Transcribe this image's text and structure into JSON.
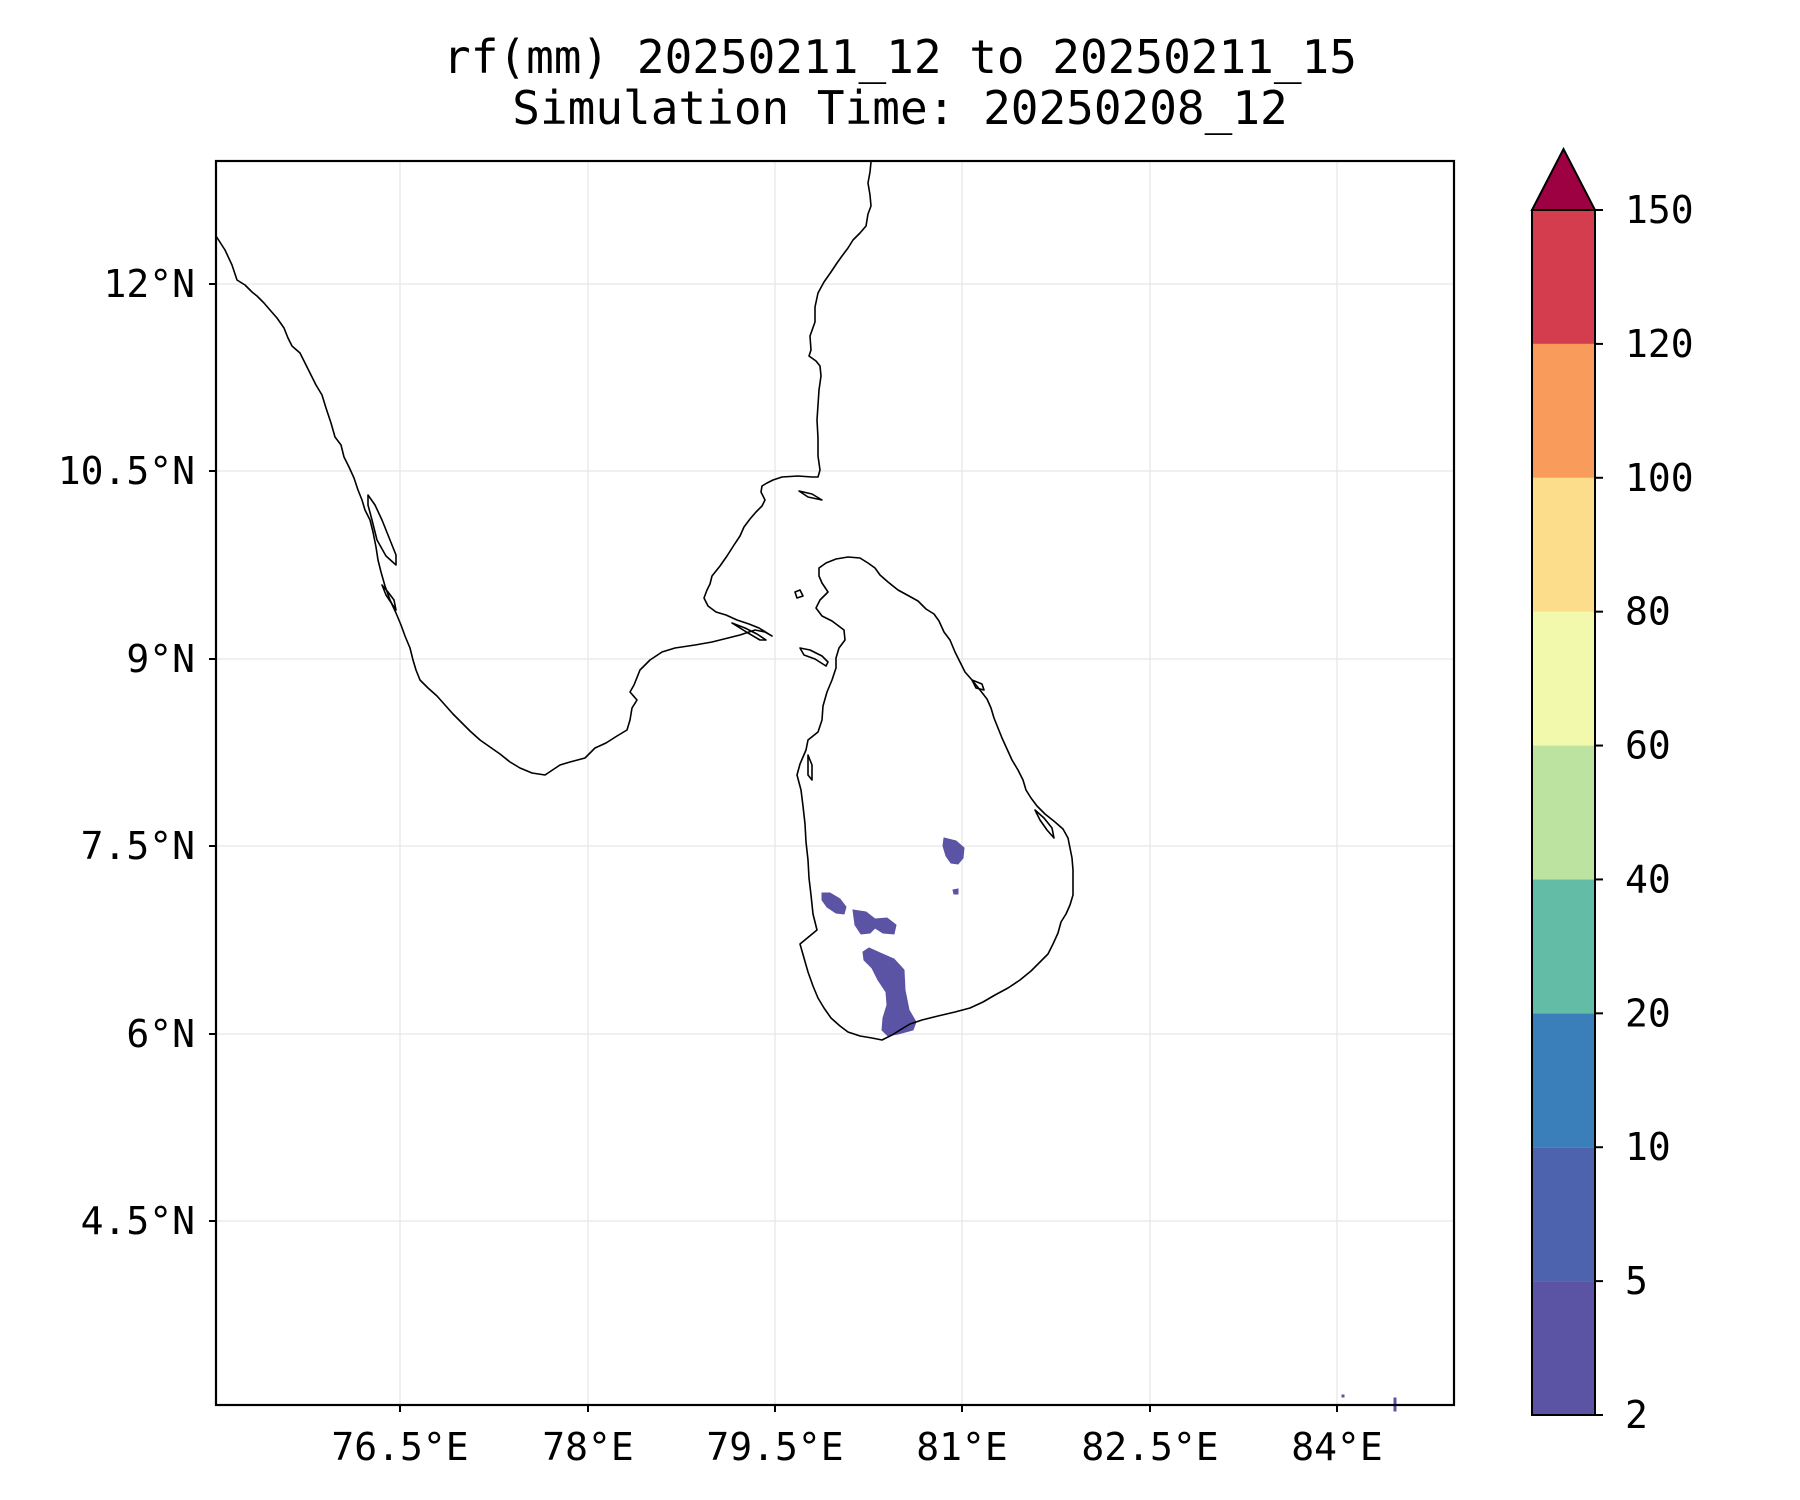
{
  "title": {
    "line1": "rf(mm) 20250211_12 to 20250211_15",
    "line2": "Simulation Time: 20250208_12"
  },
  "map": {
    "lat_ticks": [
      "12°N",
      "10.5°N",
      "9°N",
      "7.5°N",
      "6°N",
      "4.5°N"
    ],
    "lon_ticks": [
      "76.5°E",
      "78°E",
      "79.5°E",
      "81°E",
      "82.5°E",
      "84°E"
    ],
    "grid": true,
    "region": "South India and Sri Lanka",
    "rainfall_areas": [
      {
        "name": "central-highlands-cell",
        "range_mm": "2-5"
      },
      {
        "name": "central-east-speck",
        "range_mm": "2-5"
      },
      {
        "name": "western-coast-cell",
        "range_mm": "2-5"
      },
      {
        "name": "ratnapura-cell",
        "range_mm": "2-5"
      },
      {
        "name": "southern-cell",
        "range_mm": "2-5"
      }
    ]
  },
  "colorbar": {
    "levels": [
      "2",
      "5",
      "10",
      "20",
      "40",
      "60",
      "80",
      "100",
      "120",
      "150"
    ],
    "colors": [
      "#5b53a4",
      "#4d63ad",
      "#3a7fba",
      "#63bca6",
      "#bde3a1",
      "#f2f9ac",
      "#fbdd8b",
      "#f99c5b",
      "#d33d4d",
      "#9e0142"
    ],
    "extend": "max"
  }
}
